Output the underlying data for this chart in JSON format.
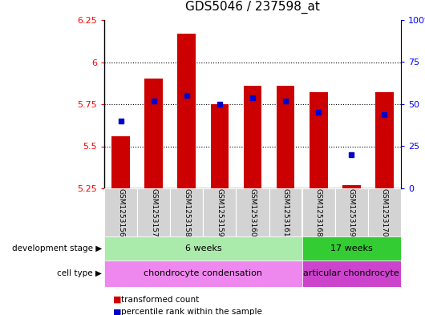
{
  "title": "GDS5046 / 237598_at",
  "samples": [
    "GSM1253156",
    "GSM1253157",
    "GSM1253158",
    "GSM1253159",
    "GSM1253160",
    "GSM1253161",
    "GSM1253168",
    "GSM1253169",
    "GSM1253170"
  ],
  "bar_values": [
    5.56,
    5.9,
    6.17,
    5.75,
    5.86,
    5.86,
    5.82,
    5.27,
    5.82
  ],
  "bar_bottom": 5.25,
  "percentile_values": [
    40,
    52,
    55,
    50,
    54,
    52,
    45,
    20,
    44
  ],
  "bar_color": "#cc0000",
  "dot_color": "#0000cc",
  "ylim": [
    5.25,
    6.25
  ],
  "y_ticks": [
    5.25,
    5.5,
    5.75,
    6.0,
    6.25
  ],
  "y_tick_labels": [
    "5.25",
    "5.5",
    "5.75",
    "6",
    "6.25"
  ],
  "right_ylim": [
    0,
    100
  ],
  "right_yticks": [
    0,
    25,
    50,
    75,
    100
  ],
  "right_yticklabels": [
    "0",
    "25",
    "50",
    "75",
    "100%"
  ],
  "hlines": [
    5.5,
    5.75,
    6.0
  ],
  "dev_stage_groups": [
    {
      "label": "6 weeks",
      "start": 0,
      "end": 6,
      "color": "#aaeaaa"
    },
    {
      "label": "17 weeks",
      "start": 6,
      "end": 9,
      "color": "#33cc33"
    }
  ],
  "cell_type_groups": [
    {
      "label": "chondrocyte condensation",
      "start": 0,
      "end": 6,
      "color": "#ee88ee"
    },
    {
      "label": "articular chondrocyte",
      "start": 6,
      "end": 9,
      "color": "#cc44cc"
    }
  ],
  "legend_bar_label": "transformed count",
  "legend_dot_label": "percentile rank within the sample",
  "row_label_dev": "development stage",
  "row_label_cell": "cell type",
  "background_color": "#ffffff",
  "plot_bg_color": "#ffffff",
  "bar_width": 0.55,
  "title_fontsize": 11,
  "tick_label_fontsize": 8,
  "n_samples": 9,
  "group_split": 6
}
